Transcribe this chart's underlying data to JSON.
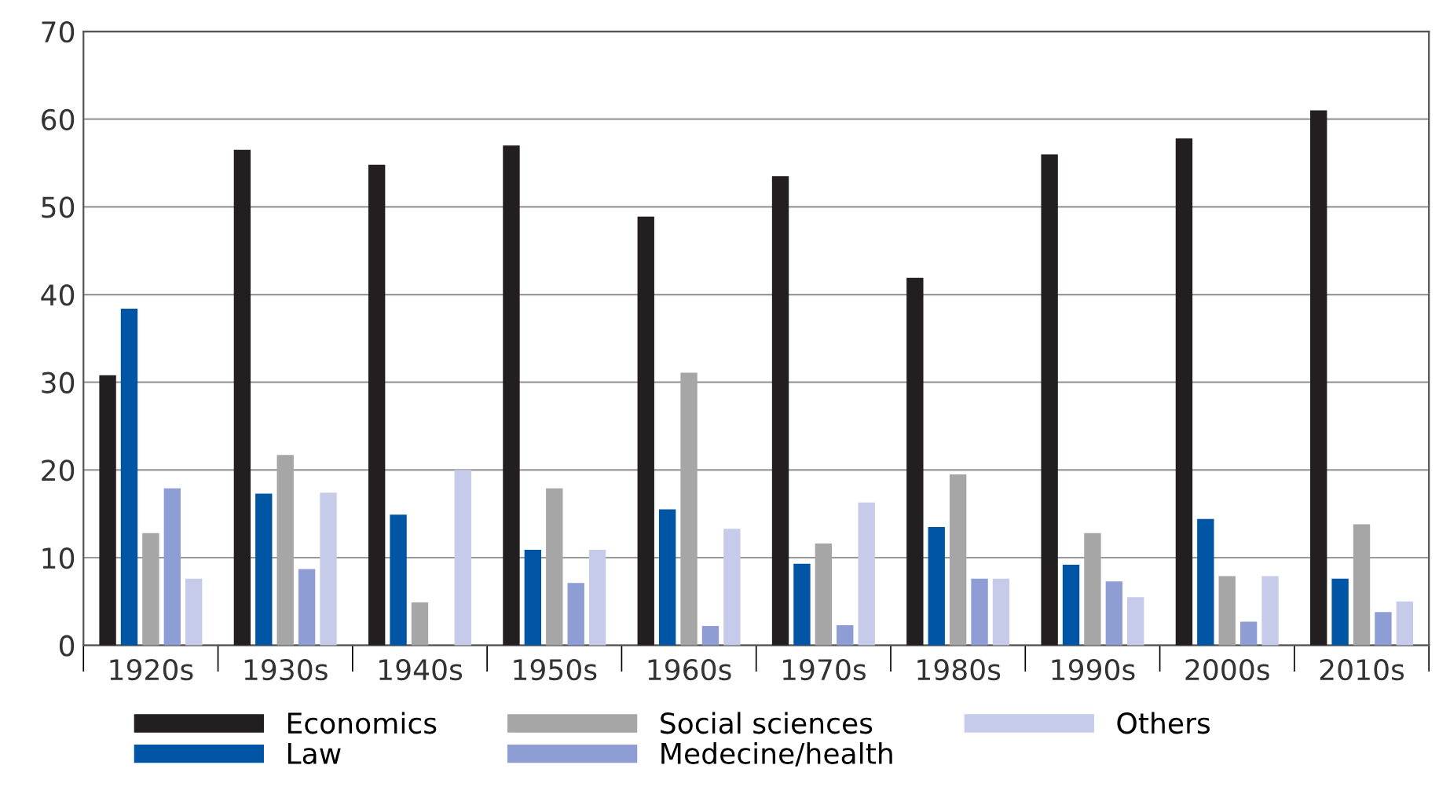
{
  "chart_data": {
    "type": "bar",
    "categories": [
      "1920s",
      "1930s",
      "1940s",
      "1950s",
      "1960s",
      "1970s",
      "1980s",
      "1990s",
      "2000s",
      "2010s"
    ],
    "series": [
      {
        "name": "Economics",
        "color": "#231f20",
        "values": [
          30.8,
          56.5,
          54.8,
          57.0,
          48.9,
          53.5,
          41.9,
          56.0,
          57.8,
          61.0
        ]
      },
      {
        "name": "Law",
        "color": "#0055a4",
        "values": [
          38.4,
          17.3,
          14.9,
          10.9,
          15.5,
          9.3,
          13.5,
          9.2,
          14.4,
          7.6
        ]
      },
      {
        "name": "Social sciences",
        "color": "#a6a6a6",
        "values": [
          12.8,
          21.7,
          4.9,
          17.9,
          31.1,
          11.6,
          19.5,
          12.8,
          7.9,
          13.8
        ]
      },
      {
        "name": "Medecine/health",
        "color": "#8e9dd3",
        "values": [
          17.9,
          8.7,
          0,
          7.1,
          2.2,
          2.3,
          7.6,
          7.3,
          2.7,
          3.8
        ]
      },
      {
        "name": "Others",
        "color": "#c5cbe8",
        "values": [
          7.6,
          17.4,
          20.0,
          10.9,
          13.3,
          16.3,
          7.6,
          5.5,
          7.9,
          5.0
        ]
      }
    ],
    "ylim": [
      0,
      70
    ],
    "yticks": [
      0,
      10,
      20,
      30,
      40,
      50,
      60,
      70
    ],
    "grid": "y",
    "legend": "bottom"
  }
}
